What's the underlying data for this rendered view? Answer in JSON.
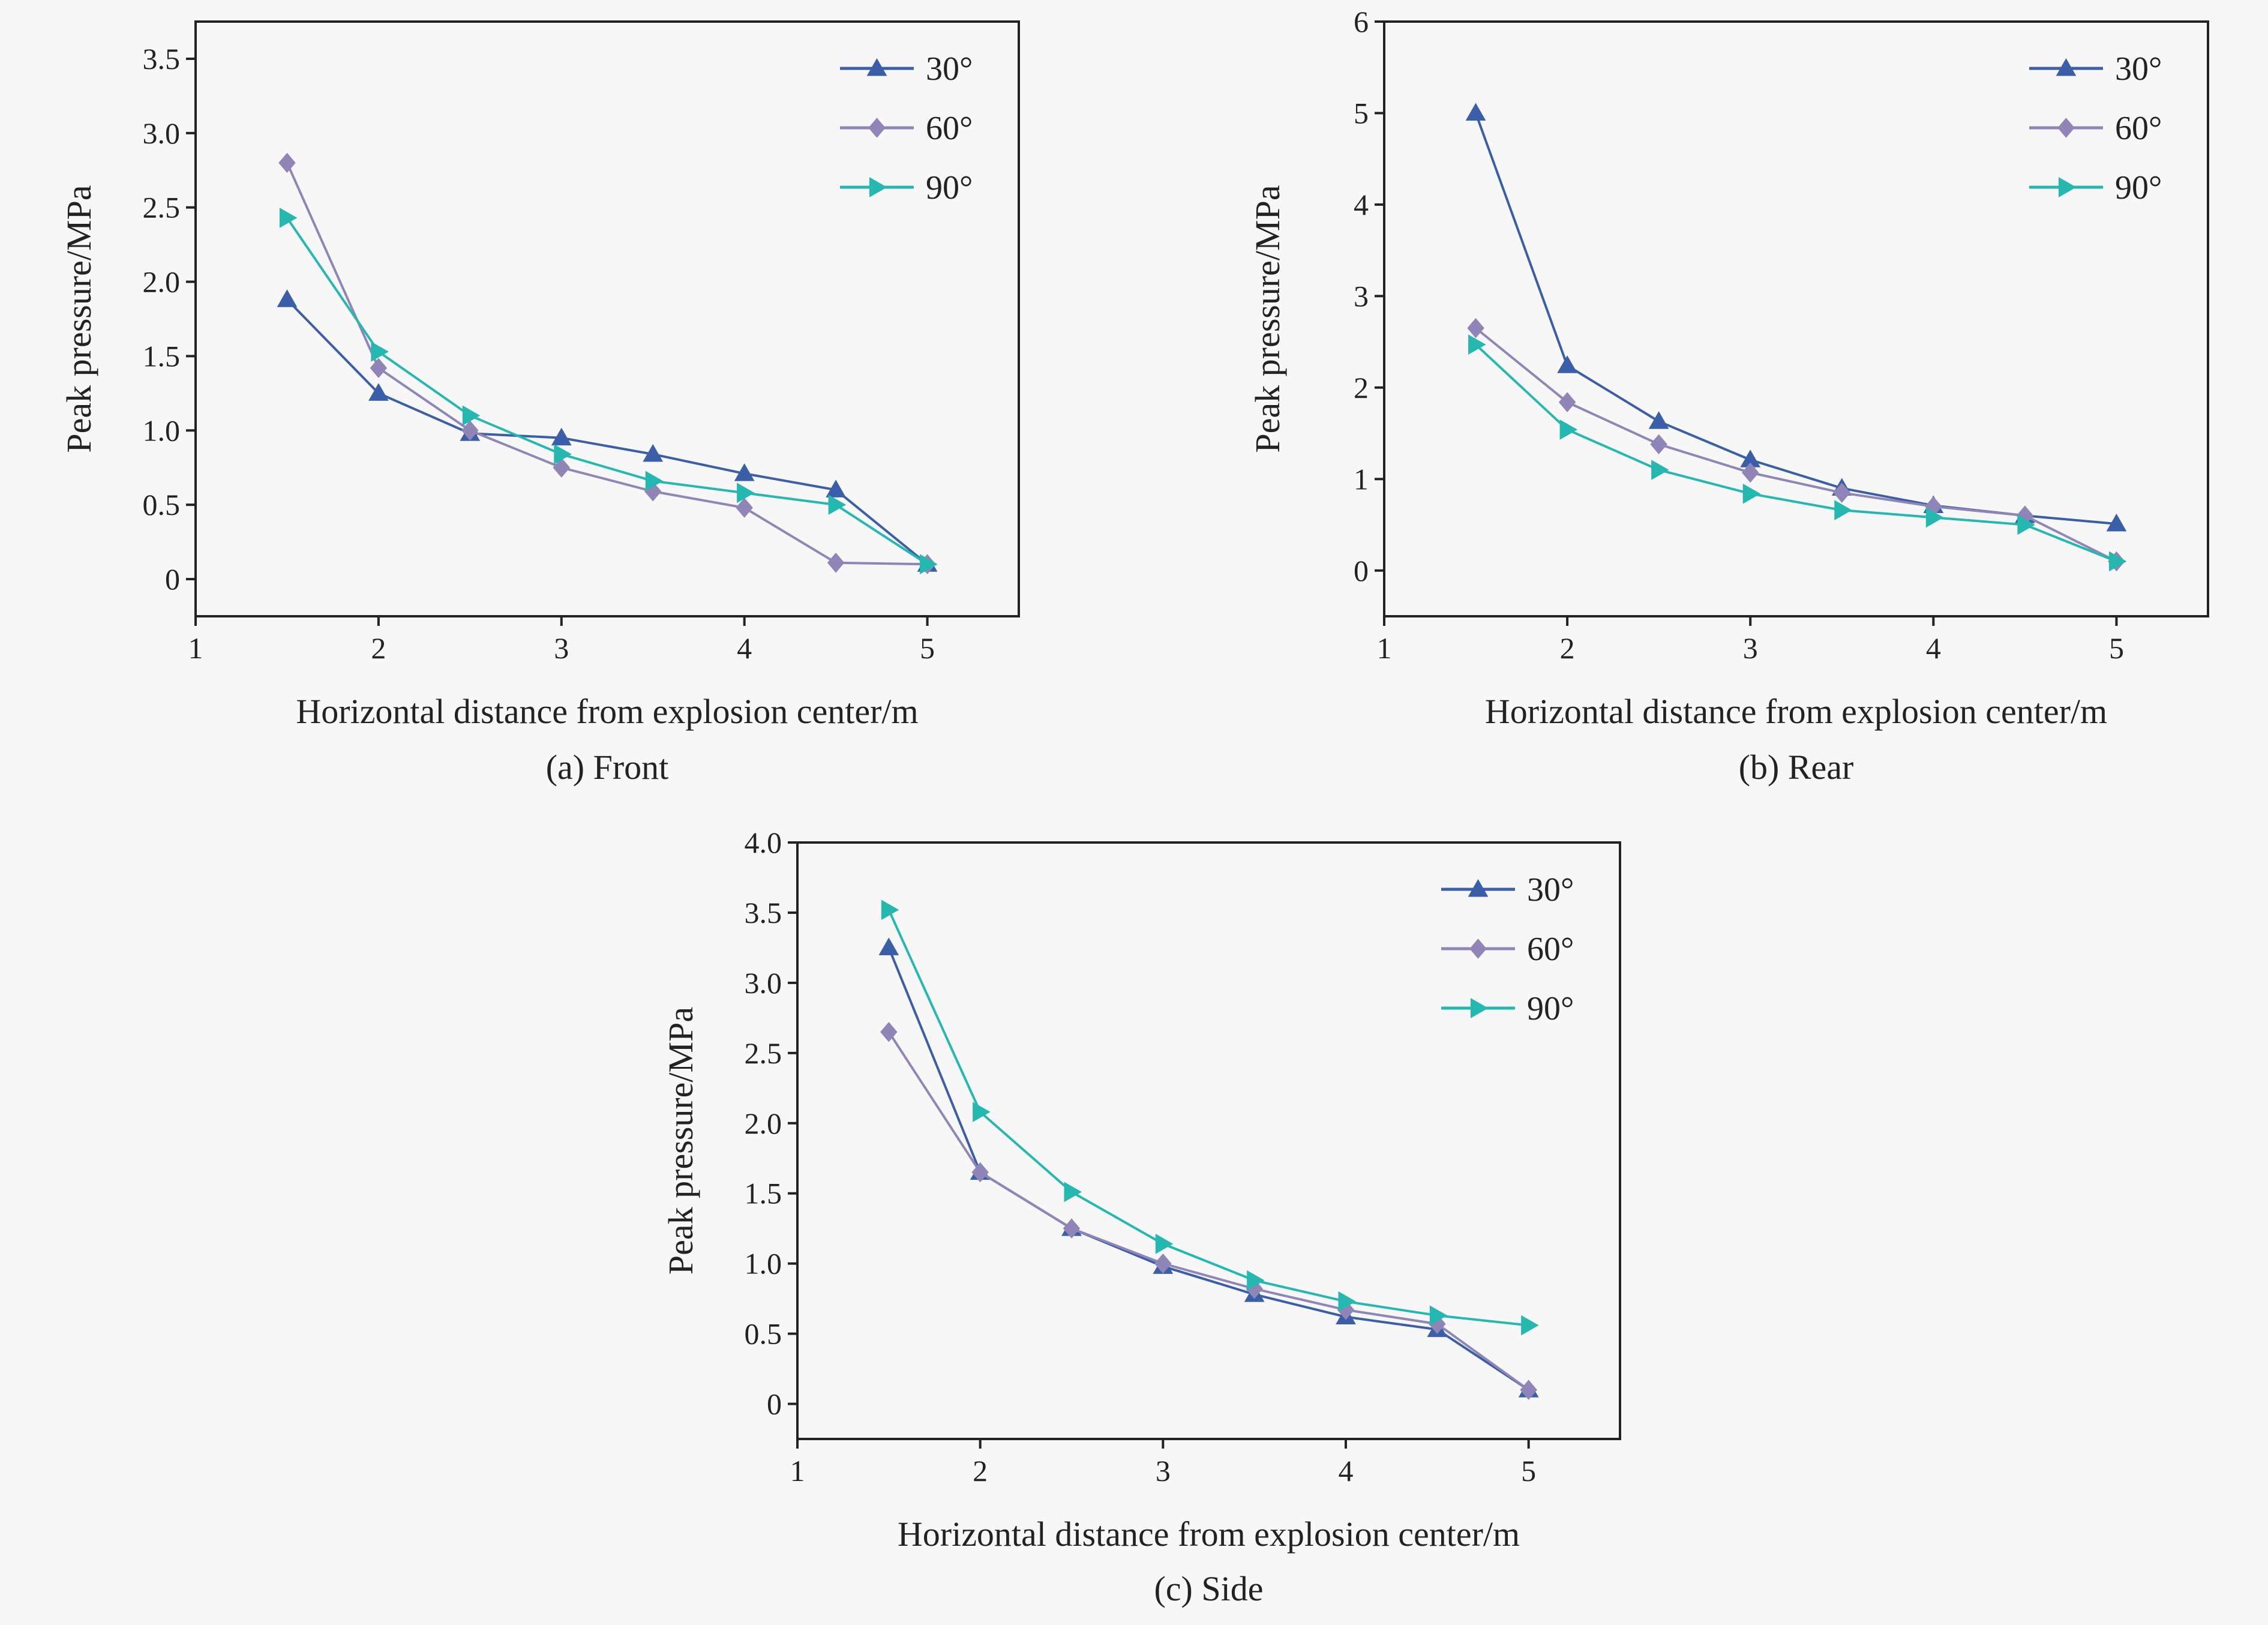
{
  "colors": {
    "background": "#f7f7f7",
    "axis": "#222222",
    "series_30": "#3a5ea8",
    "series_60": "#8f86b7",
    "series_90": "#25b8b0"
  },
  "chart_data": [
    {
      "type": "line",
      "caption": "(a) Front",
      "xlabel": "Horizontal distance from explosion center/m",
      "ylabel": "Peak pressure/MPa",
      "xlim": [
        1,
        5.5
      ],
      "ylim": [
        -0.25,
        3.75
      ],
      "xticks": [
        "1",
        "2",
        "3",
        "4",
        "5"
      ],
      "yticks": [
        "0",
        "0.5",
        "1.0",
        "1.5",
        "2.0",
        "2.5",
        "3.0",
        "3.5"
      ],
      "legend_position": "top-right",
      "x": [
        1.5,
        2,
        2.5,
        3,
        3.5,
        4,
        4.5,
        5
      ],
      "series": [
        {
          "name": "30°",
          "marker": "triangle-up",
          "color": "#3a5ea8",
          "values": [
            1.88,
            1.25,
            0.98,
            0.95,
            0.84,
            0.71,
            0.6,
            0.1
          ]
        },
        {
          "name": "60°",
          "marker": "diamond",
          "color": "#8f86b7",
          "values": [
            2.8,
            1.42,
            1.0,
            0.75,
            0.59,
            0.48,
            0.11,
            0.1
          ]
        },
        {
          "name": "90°",
          "marker": "triangle-right",
          "color": "#25b8b0",
          "values": [
            2.43,
            1.53,
            1.1,
            0.84,
            0.66,
            0.58,
            0.5,
            0.1
          ]
        }
      ]
    },
    {
      "type": "line",
      "caption": "(b) Rear",
      "xlabel": "Horizontal distance from explosion center/m",
      "ylabel": "Peak pressure/MPa",
      "xlim": [
        1,
        5.5
      ],
      "ylim": [
        -0.5,
        6
      ],
      "xticks": [
        "1",
        "2",
        "3",
        "4",
        "5"
      ],
      "yticks": [
        "0",
        "1",
        "2",
        "3",
        "4",
        "5",
        "6"
      ],
      "legend_position": "top-right",
      "x": [
        1.5,
        2,
        2.5,
        3,
        3.5,
        4,
        4.5,
        5
      ],
      "series": [
        {
          "name": "30°",
          "marker": "triangle-up",
          "color": "#3a5ea8",
          "values": [
            5.0,
            2.24,
            1.63,
            1.21,
            0.9,
            0.71,
            0.6,
            0.51
          ]
        },
        {
          "name": "60°",
          "marker": "diamond",
          "color": "#8f86b7",
          "values": [
            2.65,
            1.84,
            1.38,
            1.07,
            0.85,
            0.7,
            0.6,
            0.1
          ]
        },
        {
          "name": "90°",
          "marker": "triangle-right",
          "color": "#25b8b0",
          "values": [
            2.47,
            1.54,
            1.1,
            0.84,
            0.66,
            0.58,
            0.5,
            0.1
          ]
        }
      ]
    },
    {
      "type": "line",
      "caption": "(c) Side",
      "xlabel": "Horizontal distance from explosion center/m",
      "ylabel": "Peak pressure/MPa",
      "xlim": [
        1,
        5.5
      ],
      "ylim": [
        -0.25,
        4.0
      ],
      "xticks": [
        "1",
        "2",
        "3",
        "4",
        "5"
      ],
      "yticks": [
        "0",
        "0.5",
        "1.0",
        "1.5",
        "2.0",
        "2.5",
        "3.0",
        "3.5",
        "4.0"
      ],
      "legend_position": "top-right",
      "x": [
        1.5,
        2,
        2.5,
        3,
        3.5,
        4,
        4.5,
        5
      ],
      "series": [
        {
          "name": "30°",
          "marker": "triangle-up",
          "color": "#3a5ea8",
          "values": [
            3.25,
            1.65,
            1.25,
            0.98,
            0.78,
            0.62,
            0.53,
            0.1
          ]
        },
        {
          "name": "60°",
          "marker": "diamond",
          "color": "#8f86b7",
          "values": [
            2.65,
            1.65,
            1.25,
            1.0,
            0.82,
            0.67,
            0.57,
            0.1
          ]
        },
        {
          "name": "90°",
          "marker": "triangle-right",
          "color": "#25b8b0",
          "values": [
            3.52,
            2.08,
            1.51,
            1.14,
            0.88,
            0.73,
            0.63,
            0.56
          ]
        }
      ]
    }
  ]
}
